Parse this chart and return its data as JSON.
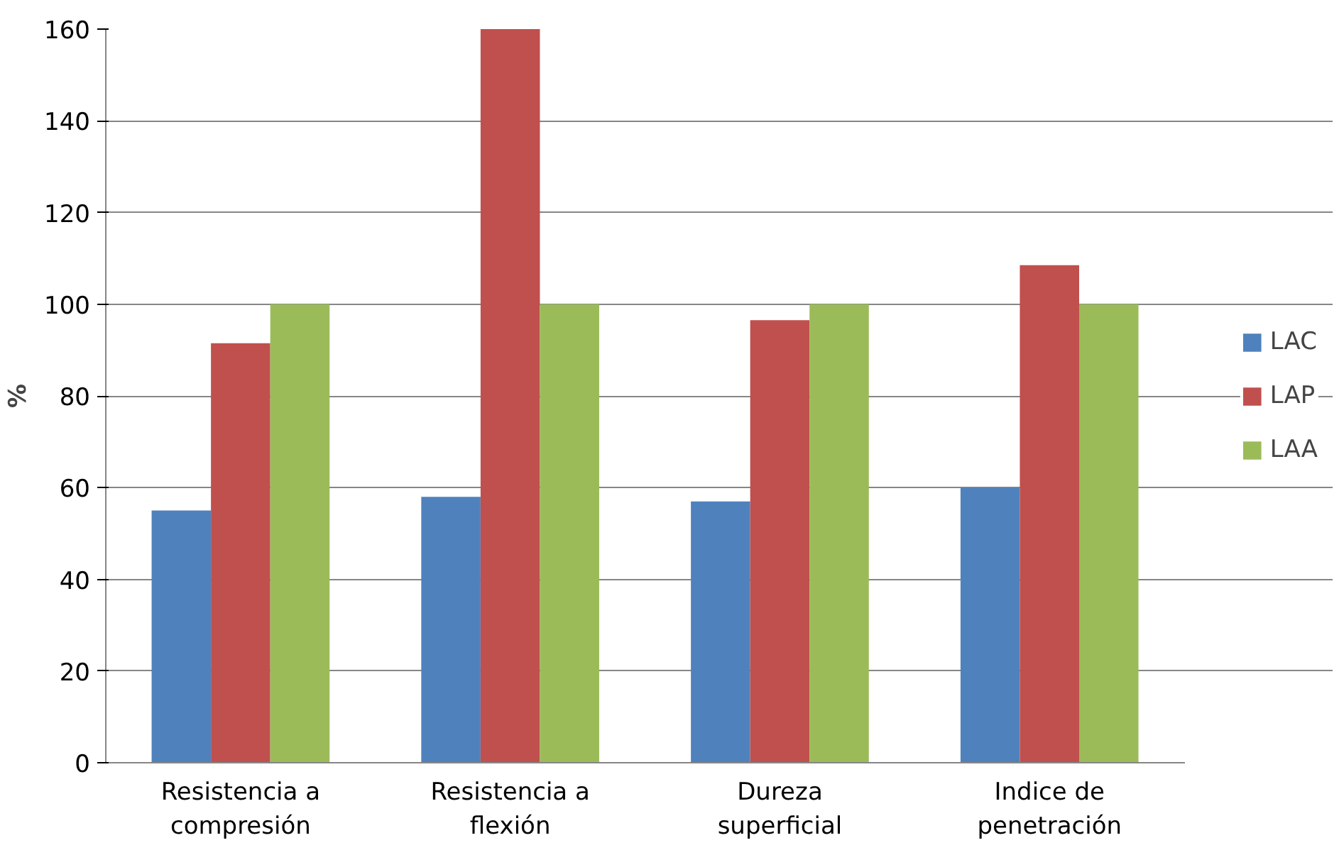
{
  "chart_data": {
    "type": "bar",
    "ylabel": "%",
    "categories": [
      "Resistencia a\ncompresión",
      "Resistencia a\nflexión",
      "Dureza\nsuperficial",
      "Indice de\npenetración"
    ],
    "series": [
      {
        "name": "LAC",
        "color": "#4f81bd",
        "values": [
          55,
          58,
          57,
          60
        ]
      },
      {
        "name": "LAP",
        "color": "#c0504d",
        "values": [
          91.5,
          160,
          96.5,
          108.5
        ]
      },
      {
        "name": "LAA",
        "color": "#9bbb59",
        "values": [
          100,
          100,
          100,
          100
        ]
      }
    ],
    "ylim": [
      0,
      160
    ],
    "yticks": [
      0,
      20,
      40,
      60,
      80,
      100,
      120,
      140,
      160
    ],
    "grid": "y",
    "legend": "right"
  }
}
